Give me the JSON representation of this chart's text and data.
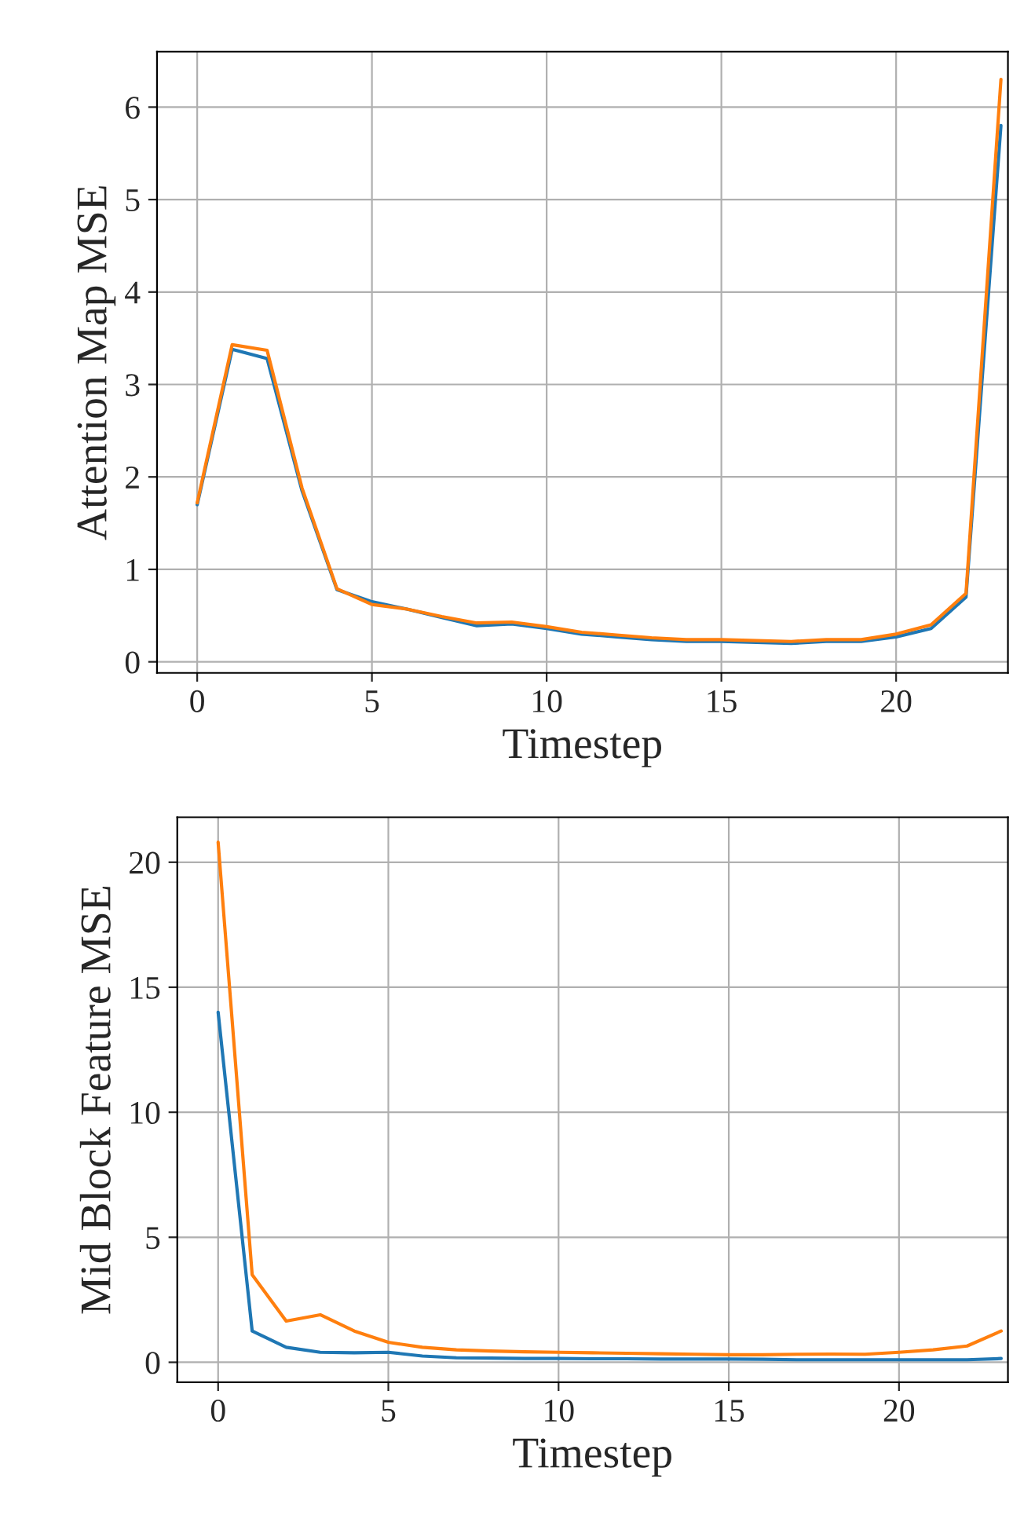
{
  "chart_data": [
    {
      "type": "line",
      "xlabel": "Timestep",
      "ylabel": "Attention Map MSE",
      "x": [
        0,
        1,
        2,
        3,
        4,
        5,
        6,
        7,
        8,
        9,
        10,
        11,
        12,
        13,
        14,
        15,
        16,
        17,
        18,
        19,
        20,
        21,
        22,
        23
      ],
      "series": [
        {
          "color": "#1f77b4",
          "values": [
            1.7,
            3.38,
            3.28,
            1.85,
            0.78,
            0.65,
            0.57,
            0.48,
            0.39,
            0.41,
            0.36,
            0.3,
            0.27,
            0.24,
            0.22,
            0.22,
            0.21,
            0.2,
            0.22,
            0.22,
            0.27,
            0.36,
            0.7,
            5.8
          ]
        },
        {
          "color": "#ff7f0e",
          "values": [
            1.72,
            3.43,
            3.37,
            1.88,
            0.79,
            0.62,
            0.57,
            0.49,
            0.42,
            0.43,
            0.38,
            0.32,
            0.29,
            0.26,
            0.24,
            0.24,
            0.23,
            0.22,
            0.24,
            0.24,
            0.3,
            0.4,
            0.74,
            6.3
          ]
        }
      ],
      "xlim": [
        -1.15,
        23.2
      ],
      "ylim": [
        -0.12,
        6.6
      ],
      "xticks": [
        0,
        5,
        10,
        15,
        20
      ],
      "yticks": [
        0,
        1,
        2,
        3,
        4,
        5,
        6
      ],
      "grid": true
    },
    {
      "type": "line",
      "xlabel": "Timestep",
      "ylabel": "Mid Block Feature MSE",
      "x": [
        0,
        1,
        2,
        3,
        4,
        5,
        6,
        7,
        8,
        9,
        10,
        11,
        12,
        13,
        14,
        15,
        16,
        17,
        18,
        19,
        20,
        21,
        22,
        23
      ],
      "series": [
        {
          "color": "#1f77b4",
          "values": [
            14,
            1.25,
            0.6,
            0.4,
            0.38,
            0.4,
            0.25,
            0.18,
            0.17,
            0.15,
            0.15,
            0.14,
            0.14,
            0.13,
            0.13,
            0.13,
            0.12,
            0.1,
            0.1,
            0.1,
            0.1,
            0.1,
            0.1,
            0.15
          ]
        },
        {
          "color": "#ff7f0e",
          "values": [
            20.8,
            3.5,
            1.65,
            1.9,
            1.25,
            0.8,
            0.6,
            0.5,
            0.45,
            0.42,
            0.4,
            0.38,
            0.36,
            0.34,
            0.32,
            0.3,
            0.3,
            0.32,
            0.33,
            0.32,
            0.4,
            0.5,
            0.65,
            1.25
          ]
        }
      ],
      "xlim": [
        -1.2,
        23.2
      ],
      "ylim": [
        -0.8,
        21.8
      ],
      "xticks": [
        0,
        5,
        10,
        15,
        20
      ],
      "yticks": [
        0,
        5,
        10,
        15,
        20
      ],
      "grid": true
    }
  ]
}
